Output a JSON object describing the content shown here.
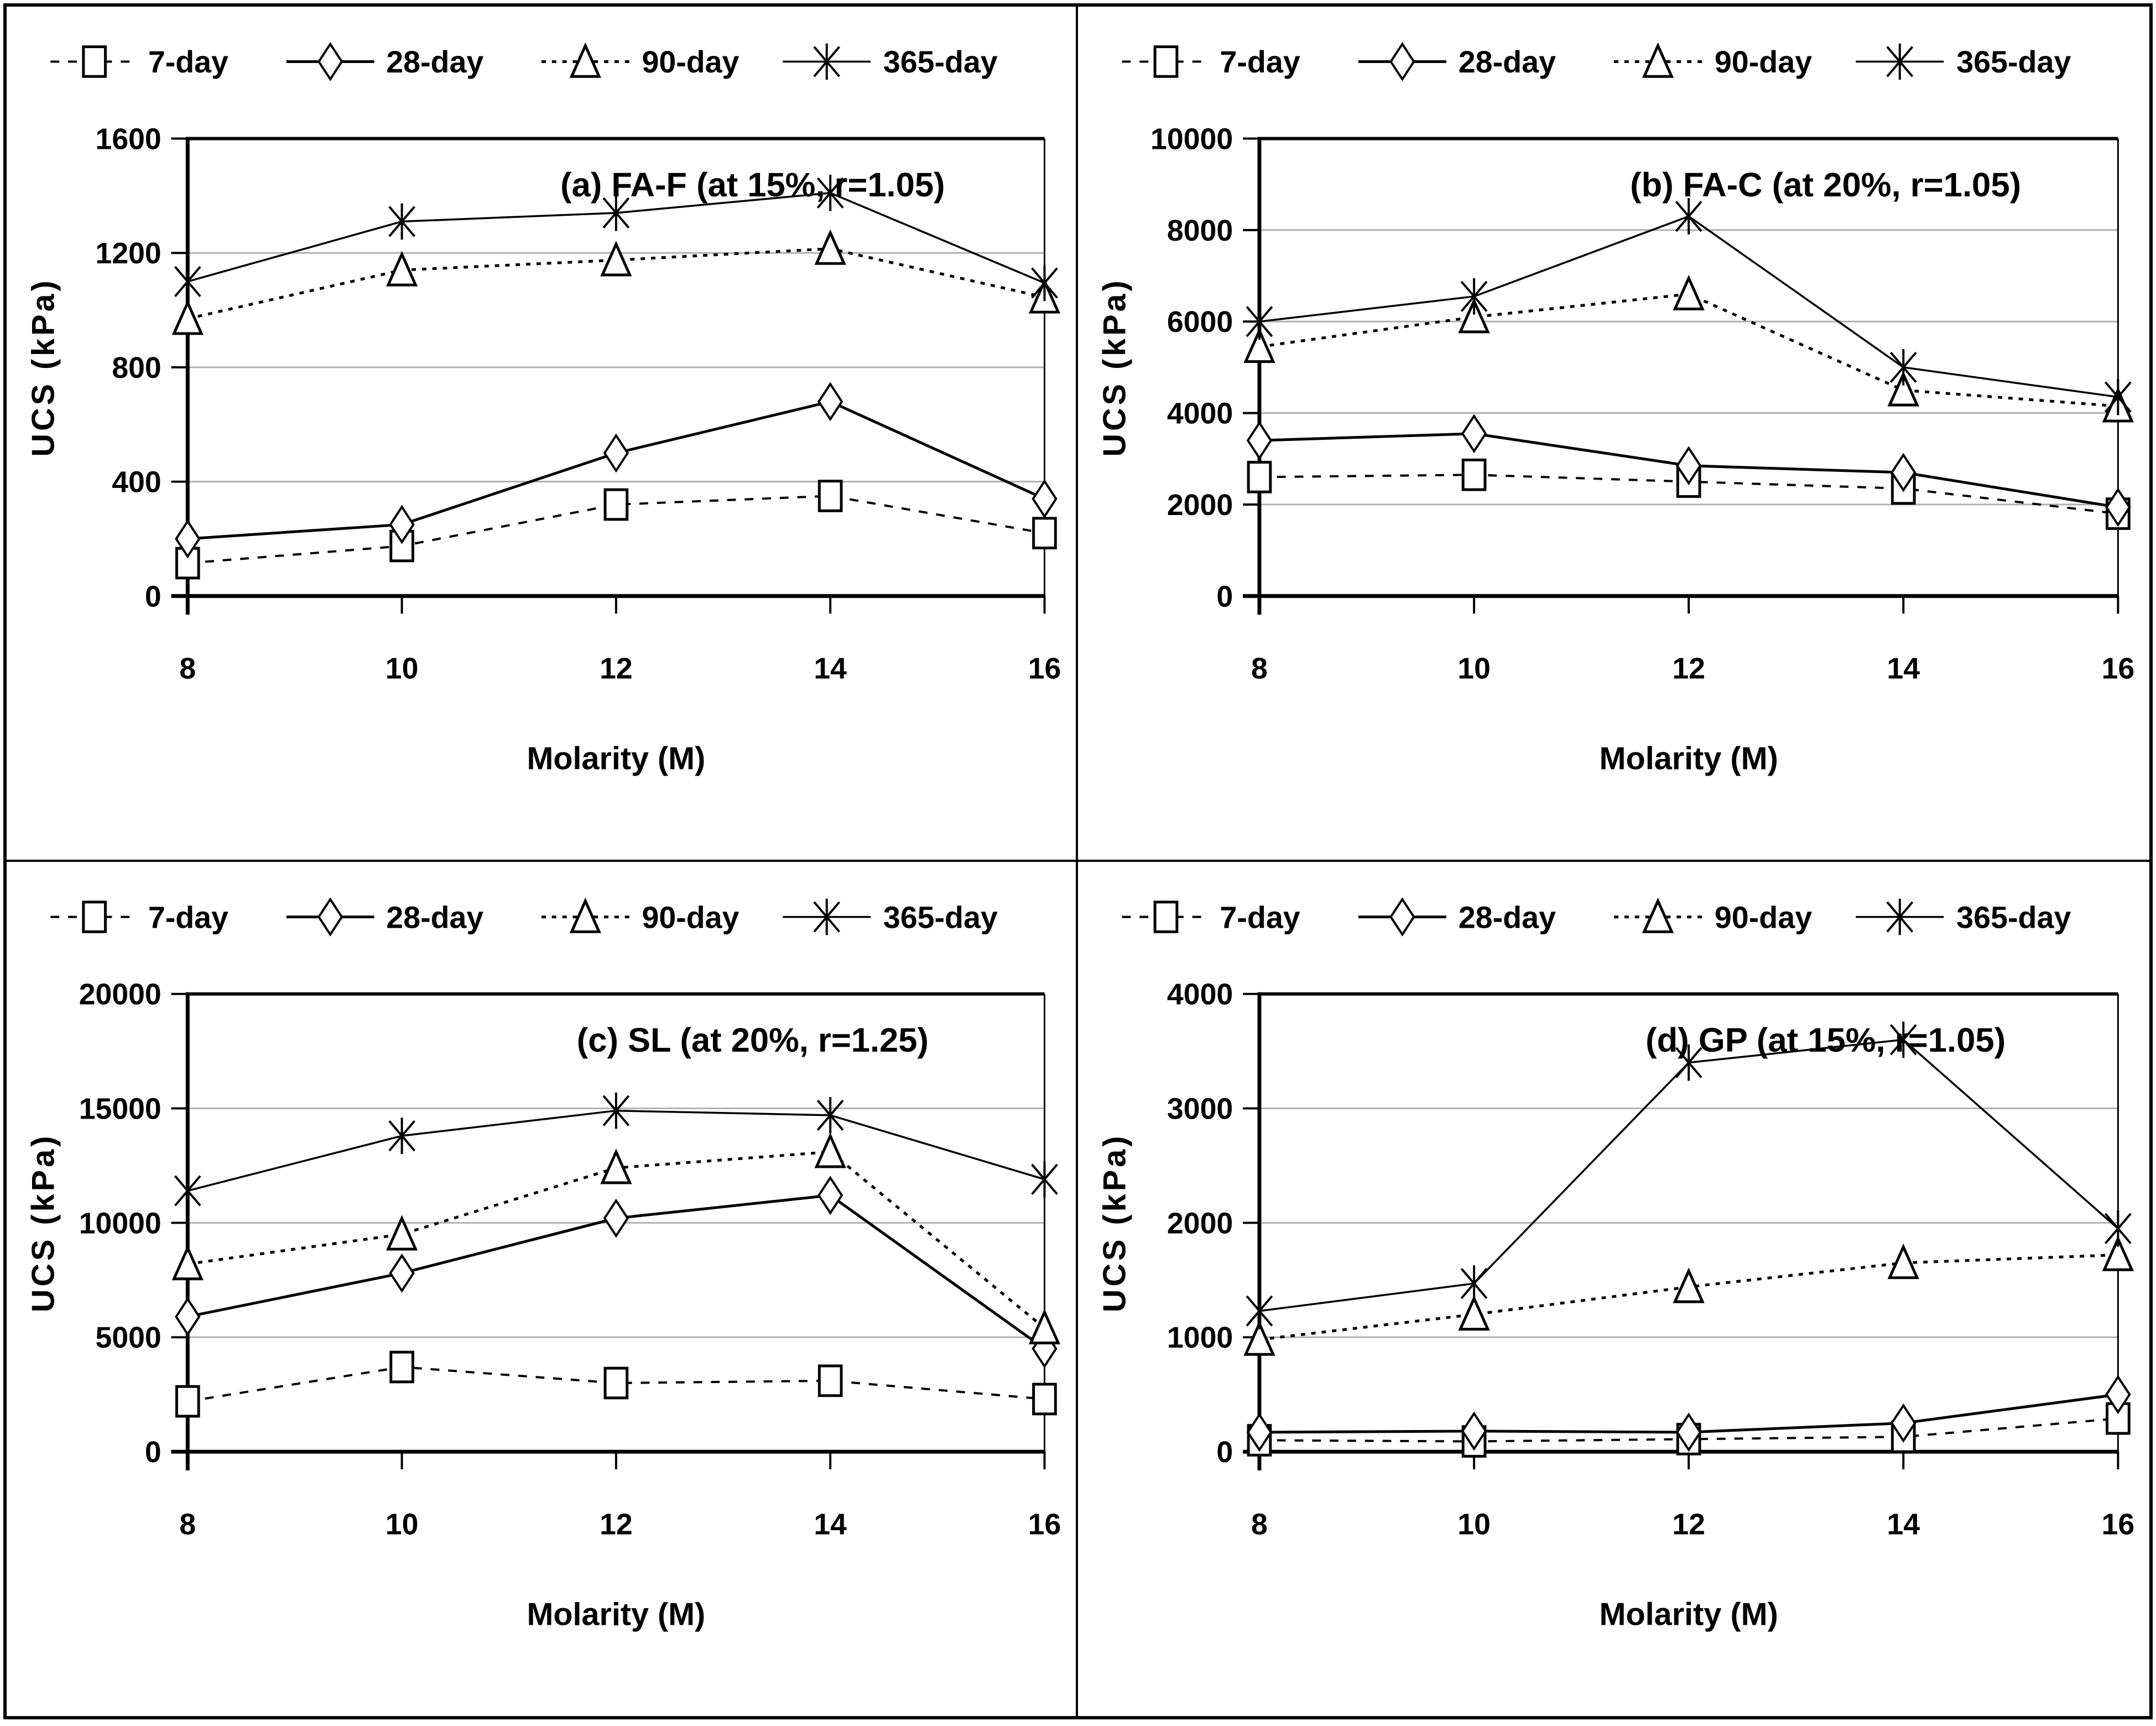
{
  "figure": {
    "background": "#ffffff",
    "border_color": "#000000",
    "grid_color": "#b0b0b0",
    "line_color": "#000000",
    "xlabel": "Molarity (M)",
    "ylabel": "UCS (kPa)"
  },
  "chart_data": [
    {
      "type": "line",
      "panel": "a",
      "title": "(a) FA-F (at 15%, r=1.05)",
      "xlabel": "Molarity (M)",
      "ylabel": "UCS (kPa)",
      "x": [
        8,
        10,
        12,
        14,
        16
      ],
      "xlim": [
        8,
        16
      ],
      "ylim": [
        0,
        1600
      ],
      "yticks": [
        0,
        400,
        800,
        1200,
        1600
      ],
      "grid": true,
      "legend_position": "top",
      "series": [
        {
          "name": "7-day",
          "marker": "square",
          "line": "dashed",
          "values": [
            115,
            175,
            320,
            350,
            220
          ]
        },
        {
          "name": "28-day",
          "marker": "diamond",
          "line": "solid",
          "values": [
            200,
            250,
            500,
            680,
            340
          ]
        },
        {
          "name": "90-day",
          "marker": "triangle",
          "line": "dotted",
          "values": [
            970,
            1140,
            1175,
            1215,
            1045
          ]
        },
        {
          "name": "365-day",
          "marker": "star",
          "line": "solid-thin",
          "values": [
            1100,
            1310,
            1340,
            1410,
            1095
          ]
        }
      ]
    },
    {
      "type": "line",
      "panel": "b",
      "title": "(b) FA-C (at 20%, r=1.05)",
      "xlabel": "Molarity (M)",
      "ylabel": "UCS (kPa)",
      "x": [
        8,
        10,
        12,
        14,
        16
      ],
      "xlim": [
        8,
        16
      ],
      "ylim": [
        0,
        10000
      ],
      "yticks": [
        0,
        2000,
        4000,
        6000,
        8000,
        10000
      ],
      "grid": true,
      "legend_position": "top",
      "series": [
        {
          "name": "7-day",
          "marker": "square",
          "line": "dashed",
          "values": [
            2600,
            2650,
            2500,
            2350,
            1800
          ]
        },
        {
          "name": "28-day",
          "marker": "diamond",
          "line": "solid",
          "values": [
            3400,
            3550,
            2850,
            2700,
            1940
          ]
        },
        {
          "name": "90-day",
          "marker": "triangle",
          "line": "dotted",
          "values": [
            5450,
            6100,
            6600,
            4500,
            4150
          ]
        },
        {
          "name": "365-day",
          "marker": "star",
          "line": "solid-thin",
          "values": [
            6000,
            6550,
            8300,
            5000,
            4350
          ]
        }
      ]
    },
    {
      "type": "line",
      "panel": "c",
      "title": "(c) SL (at 20%, r=1.25)",
      "xlabel": "Molarity (M)",
      "ylabel": "UCS (kPa)",
      "x": [
        8,
        10,
        12,
        14,
        16
      ],
      "xlim": [
        8,
        16
      ],
      "ylim": [
        0,
        20000
      ],
      "yticks": [
        0,
        5000,
        10000,
        15000,
        20000
      ],
      "grid": true,
      "legend_position": "top",
      "series": [
        {
          "name": "7-day",
          "marker": "square",
          "line": "dashed",
          "values": [
            2200,
            3700,
            3000,
            3100,
            2300
          ]
        },
        {
          "name": "28-day",
          "marker": "diamond",
          "line": "solid",
          "values": [
            5900,
            7800,
            10200,
            11200,
            4500
          ]
        },
        {
          "name": "90-day",
          "marker": "triangle",
          "line": "dotted",
          "values": [
            8200,
            9500,
            12400,
            13100,
            5400
          ]
        },
        {
          "name": "365-day",
          "marker": "star",
          "line": "solid-thin",
          "values": [
            11400,
            13800,
            14900,
            14700,
            11900
          ]
        }
      ]
    },
    {
      "type": "line",
      "panel": "d",
      "title": "(d) GP (at 15%, r=1.05)",
      "xlabel": "Molarity (M)",
      "ylabel": "UCS (kPa)",
      "x": [
        8,
        10,
        12,
        14,
        16
      ],
      "xlim": [
        8,
        16
      ],
      "ylim": [
        0,
        4000
      ],
      "yticks": [
        0,
        1000,
        2000,
        3000,
        4000
      ],
      "grid": true,
      "legend_position": "top",
      "series": [
        {
          "name": "7-day",
          "marker": "square",
          "line": "dashed",
          "values": [
            100,
            90,
            110,
            130,
            290
          ]
        },
        {
          "name": "28-day",
          "marker": "diamond",
          "line": "solid",
          "values": [
            170,
            180,
            170,
            250,
            500
          ]
        },
        {
          "name": "90-day",
          "marker": "triangle",
          "line": "dotted",
          "values": [
            980,
            1200,
            1440,
            1650,
            1720
          ]
        },
        {
          "name": "365-day",
          "marker": "star",
          "line": "solid-thin",
          "values": [
            1230,
            1470,
            3400,
            3600,
            1950
          ]
        }
      ]
    }
  ]
}
